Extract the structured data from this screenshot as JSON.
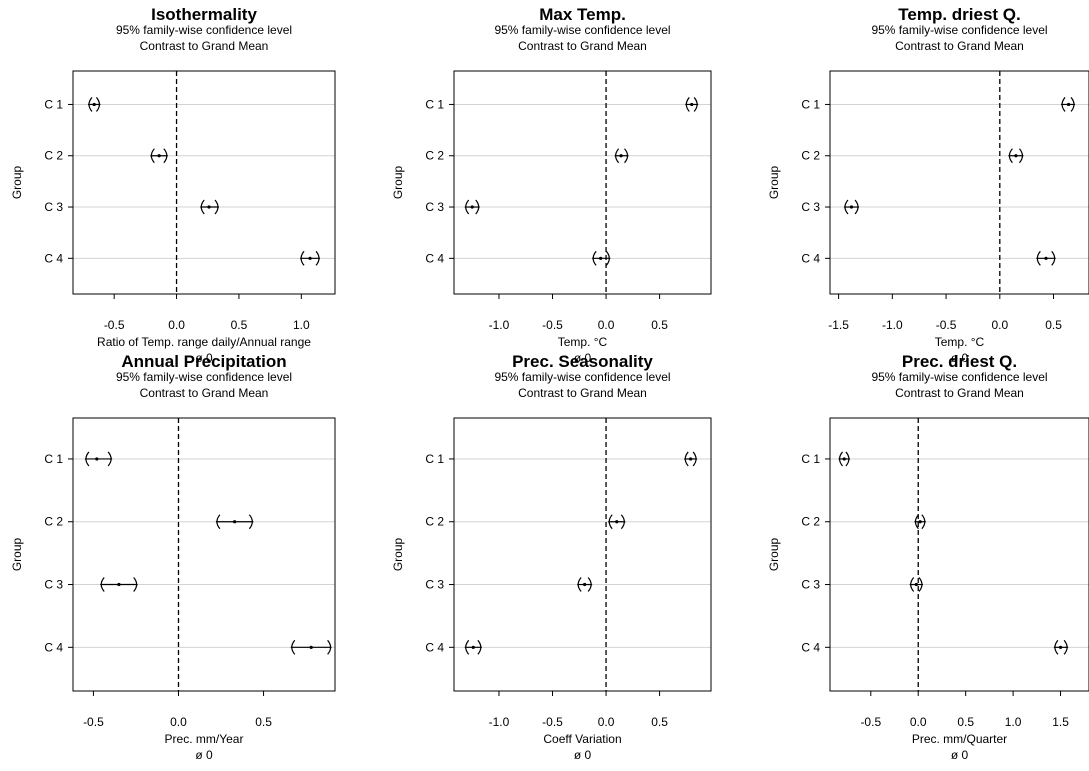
{
  "chart_data": [
    {
      "type": "interval",
      "title": "Isothermality",
      "subtitle_1": "95% family-wise confidence level",
      "subtitle_2": "Contrast to Grand Mean",
      "ylabel": "Group",
      "xlabel": "Ratio of Temp. range daily/Annual range",
      "xlabel_2": "ø 0",
      "xlim": [
        -0.83,
        1.27
      ],
      "xticks": [
        -0.5,
        0.0,
        0.5,
        1.0
      ],
      "xtick_labels": [
        "-0.5",
        "0.0",
        "0.5",
        "1.0"
      ],
      "categories": [
        "C 1",
        "C 2",
        "C 3",
        "C 4"
      ],
      "estimate": [
        -0.66,
        -0.14,
        0.26,
        1.07
      ],
      "lower": [
        -0.71,
        -0.21,
        0.19,
        0.99
      ],
      "upper": [
        -0.61,
        -0.07,
        0.34,
        1.15
      ],
      "reference_line": 0
    },
    {
      "type": "interval",
      "title": "Max Temp.",
      "subtitle_1": "95% family-wise confidence level",
      "subtitle_2": "Contrast to Grand Mean",
      "ylabel": "Group",
      "xlabel": "Temp. °C",
      "xlabel_2": "ø 0",
      "xlim": [
        -1.42,
        0.98
      ],
      "xticks": [
        -1.0,
        -0.5,
        0.0,
        0.5
      ],
      "xtick_labels": [
        "-1.0",
        "-0.5",
        "0.0",
        "0.5"
      ],
      "categories": [
        "C 1",
        "C 2",
        "C 3",
        "C 4"
      ],
      "estimate": [
        0.8,
        0.14,
        -1.25,
        -0.05
      ],
      "lower": [
        0.74,
        0.08,
        -1.32,
        -0.13
      ],
      "upper": [
        0.86,
        0.21,
        -1.18,
        0.04
      ],
      "reference_line": 0
    },
    {
      "type": "interval",
      "title": "Temp. driest Q.",
      "subtitle_1": "95% family-wise confidence level",
      "subtitle_2": "Contrast to Grand Mean",
      "ylabel": "Group",
      "xlabel": "Temp. °C",
      "xlabel_2": "ø 0",
      "xlim": [
        -1.58,
        0.83
      ],
      "xticks": [
        -1.5,
        -1.0,
        -0.5,
        0.0,
        0.5
      ],
      "xtick_labels": [
        "-1.5",
        "-1.0",
        "-0.5",
        "0.0",
        "0.5"
      ],
      "categories": [
        "C 1",
        "C 2",
        "C 3",
        "C 4"
      ],
      "estimate": [
        0.64,
        0.15,
        -1.38,
        0.43
      ],
      "lower": [
        0.57,
        0.08,
        -1.45,
        0.34
      ],
      "upper": [
        0.7,
        0.22,
        -1.31,
        0.52
      ],
      "reference_line": 0
    },
    {
      "type": "interval",
      "title": "Annual Precipitation",
      "subtitle_1": "95% family-wise confidence level",
      "subtitle_2": "Contrast to Grand Mean",
      "ylabel": "Group",
      "xlabel": "Prec. mm/Year",
      "xlabel_2": "ø 0",
      "xlim": [
        -0.62,
        0.92
      ],
      "xticks": [
        -0.5,
        0.0,
        0.5
      ],
      "xtick_labels": [
        "-0.5",
        "0.0",
        "0.5"
      ],
      "categories": [
        "C 1",
        "C 2",
        "C 3",
        "C 4"
      ],
      "estimate": [
        -0.48,
        0.33,
        -0.35,
        0.78
      ],
      "lower": [
        -0.55,
        0.22,
        -0.46,
        0.66
      ],
      "upper": [
        -0.39,
        0.44,
        -0.24,
        0.9
      ],
      "reference_line": 0
    },
    {
      "type": "interval",
      "title": "Prec. Seasonality",
      "subtitle_1": "95% family-wise confidence level",
      "subtitle_2": "Contrast to Grand Mean",
      "ylabel": "Group",
      "xlabel": "Coeff Variation",
      "xlabel_2": "ø 0",
      "xlim": [
        -1.42,
        0.98
      ],
      "xticks": [
        -1.0,
        -0.5,
        0.0,
        0.5
      ],
      "xtick_labels": [
        "-1.0",
        "-0.5",
        "0.0",
        "0.5"
      ],
      "categories": [
        "C 1",
        "C 2",
        "C 3",
        "C 4"
      ],
      "estimate": [
        0.79,
        0.1,
        -0.2,
        -1.24
      ],
      "lower": [
        0.73,
        0.02,
        -0.27,
        -1.32
      ],
      "upper": [
        0.85,
        0.18,
        -0.13,
        -1.16
      ],
      "reference_line": 0
    },
    {
      "type": "interval",
      "title": "Prec. driest Q.",
      "subtitle_1": "95% family-wise confidence level",
      "subtitle_2": "Contrast to Grand Mean",
      "ylabel": "Group",
      "xlabel": "Prec. mm/Quarter",
      "xlabel_2": "ø 0",
      "xlim": [
        -0.93,
        1.8
      ],
      "xticks": [
        -0.5,
        0.0,
        0.5,
        1.0,
        1.5
      ],
      "xtick_labels": [
        "-0.5",
        "0.0",
        "0.5",
        "1.0",
        "1.5"
      ],
      "categories": [
        "C 1",
        "C 2",
        "C 3",
        "C 4"
      ],
      "estimate": [
        -0.78,
        0.02,
        -0.02,
        1.5
      ],
      "lower": [
        -0.84,
        -0.04,
        -0.09,
        1.43
      ],
      "upper": [
        -0.72,
        0.08,
        0.05,
        1.58
      ],
      "reference_line": 0
    }
  ],
  "colors": {
    "gridline": "#d3d3d3",
    "ink": "#000000",
    "background": "#ffffff"
  }
}
